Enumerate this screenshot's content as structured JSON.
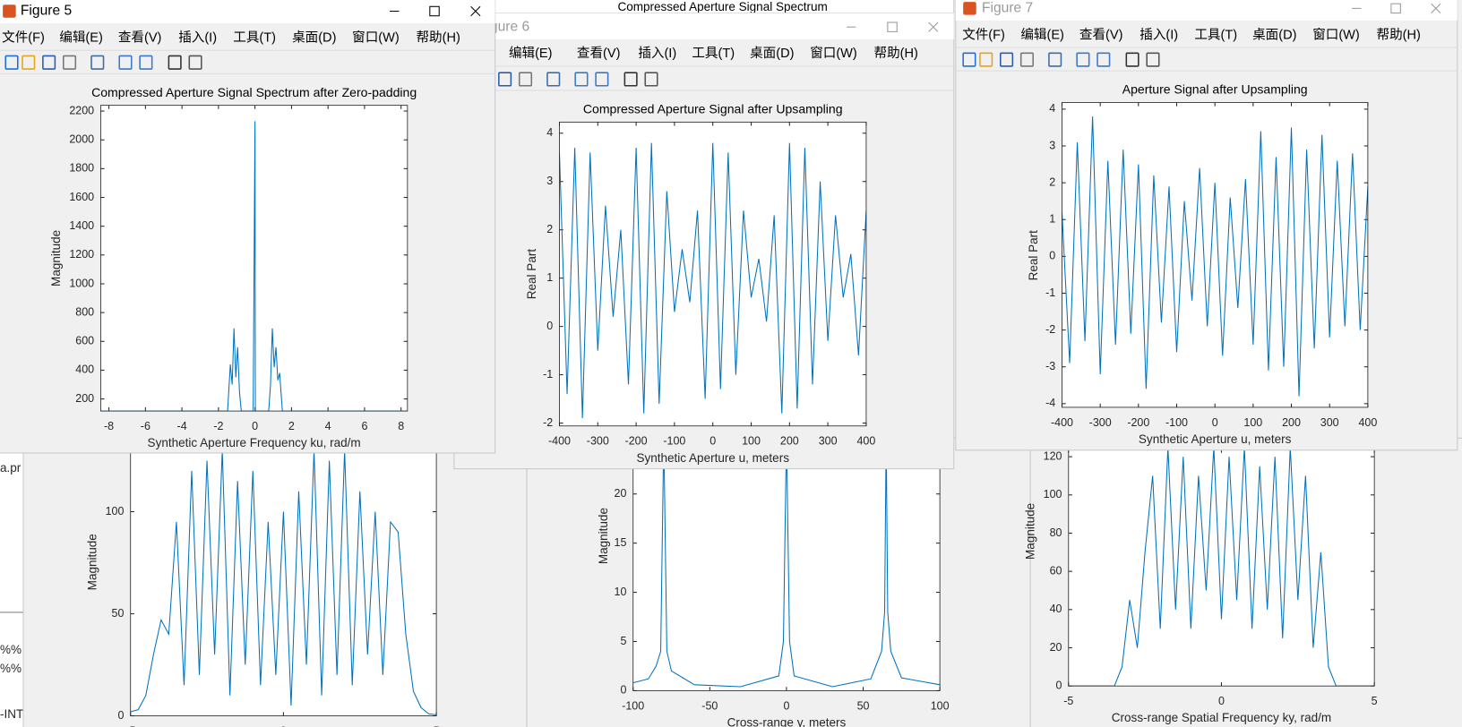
{
  "background_title": "Compressed Aperture Signal Spectrum",
  "editor_fragments": [
    "a.pr",
    "%%",
    "%%",
    "-INT"
  ],
  "windows": [
    {
      "chart": {
        "type": "line",
        "ylabel": "Magnitude",
        "color": "#0072bd",
        "x": [
          -5,
          -4.75,
          -4.5,
          -4.25,
          -4,
          -3.75,
          -3.5,
          -3.25,
          -3,
          -2.75,
          -2.5,
          -2.25,
          -2,
          -1.75,
          -1.5,
          -1.25,
          -1,
          -0.75,
          -0.5,
          -0.25,
          0,
          0.25,
          0.5,
          0.75,
          1,
          1.25,
          1.5,
          1.75,
          2,
          2.25,
          2.5,
          2.75,
          3,
          3.25,
          3.5,
          3.75,
          4,
          4.25,
          4.5,
          4.75,
          5
        ],
        "values": [
          2,
          3,
          10,
          30,
          47,
          40,
          95,
          15,
          120,
          20,
          125,
          30,
          130,
          10,
          115,
          25,
          120,
          15,
          95,
          20,
          100,
          5,
          110,
          25,
          130,
          10,
          125,
          20,
          130,
          15,
          110,
          30,
          100,
          20,
          95,
          90,
          40,
          12,
          4,
          1,
          0.5
        ],
        "xlim": [
          -5,
          5
        ],
        "ylim": [
          0,
          140
        ],
        "xticks": [
          -5,
          0,
          5
        ],
        "yticks": [
          0,
          50,
          100
        ]
      }
    },
    {
      "chart": {
        "type": "line",
        "xlabel": "Cross-range y, meters",
        "ylabel": "Magnitude",
        "color": "#0072bd",
        "x": [
          -100,
          -90,
          -85,
          -82,
          -80,
          -78,
          -75,
          -60,
          -30,
          -5,
          -2,
          0,
          2,
          5,
          30,
          55,
          62,
          64,
          65,
          66,
          68,
          75,
          100
        ],
        "values": [
          0.8,
          1.2,
          2.5,
          4,
          26,
          4,
          2,
          0.6,
          0.4,
          1.5,
          5,
          26,
          5,
          1.5,
          0.4,
          1.2,
          4,
          8,
          26,
          8,
          4,
          1.3,
          0.6
        ],
        "xlim": [
          -100,
          100
        ],
        "ylim": [
          0,
          24.5
        ],
        "xticks": [
          -100,
          -50,
          0,
          50,
          100
        ],
        "yticks": [
          0,
          5,
          10,
          15,
          20
        ]
      }
    },
    {
      "chart": {
        "type": "line",
        "xlabel": "Cross-range Spatial Frequency ky, rad/m",
        "ylabel": "Magnitude",
        "color": "#0072bd",
        "x": [
          -5,
          -4.75,
          -4.5,
          -4.25,
          -4,
          -3.75,
          -3.5,
          -3.25,
          -3,
          -2.75,
          -2.5,
          -2.25,
          -2,
          -1.75,
          -1.5,
          -1.25,
          -1,
          -0.75,
          -0.5,
          -0.25,
          0,
          0.25,
          0.5,
          0.75,
          1,
          1.25,
          1.5,
          1.75,
          2,
          2.25,
          2.5,
          2.75,
          3,
          3.25,
          3.5,
          3.75,
          4,
          4.25,
          4.5,
          4.75,
          5
        ],
        "values": [
          0,
          0,
          0,
          0,
          0,
          0,
          0,
          10,
          45,
          20,
          70,
          110,
          30,
          125,
          40,
          120,
          30,
          110,
          50,
          125,
          35,
          120,
          45,
          125,
          30,
          115,
          40,
          120,
          25,
          125,
          45,
          110,
          20,
          70,
          10,
          0,
          0,
          0,
          0,
          0,
          0
        ],
        "xlim": [
          -5,
          5
        ],
        "ylim": [
          0,
          124
        ],
        "xticks": [
          -5,
          0,
          5
        ],
        "yticks": [
          0,
          20,
          40,
          60,
          80,
          100,
          120
        ]
      }
    },
    {
      "title": "Figure 6",
      "menu": [
        "文件(F)",
        "编辑(E)",
        "查看(V)",
        "插入(I)",
        "工具(T)",
        "桌面(D)",
        "窗口(W)",
        "帮助(H)"
      ],
      "chart": {
        "type": "line",
        "title": "Compressed Aperture Signal after Upsampling",
        "xlabel": "Synthetic Aperture u, meters",
        "ylabel": "Real Part",
        "color": "#0072bd",
        "x": [
          -400,
          -380,
          -360,
          -340,
          -320,
          -300,
          -280,
          -260,
          -240,
          -220,
          -200,
          -180,
          -160,
          -140,
          -120,
          -100,
          -80,
          -60,
          -40,
          -20,
          0,
          20,
          40,
          60,
          80,
          100,
          120,
          140,
          160,
          180,
          200,
          220,
          240,
          260,
          280,
          300,
          320,
          340,
          360,
          380,
          400
        ],
        "values": [
          3.6,
          -1.4,
          3.7,
          -1.9,
          3.6,
          -0.5,
          2.5,
          0.2,
          2.0,
          -1.2,
          3.7,
          -1.8,
          3.8,
          -1.6,
          2.8,
          0.3,
          1.6,
          0.5,
          2.4,
          -1.5,
          3.8,
          -1.3,
          3.6,
          -1.0,
          2.4,
          0.6,
          1.4,
          0.1,
          2.3,
          -1.8,
          3.8,
          -1.7,
          3.7,
          -1.2,
          3.0,
          -0.3,
          2.3,
          0.6,
          1.5,
          -0.6,
          2.4
        ],
        "xlim": [
          -400,
          400
        ],
        "ylim": [
          -2.06,
          4.23
        ],
        "xticks": [
          -400,
          -300,
          -200,
          -100,
          0,
          100,
          200,
          300,
          400
        ],
        "yticks": [
          -2,
          -1,
          0,
          1,
          2,
          3,
          4
        ]
      }
    },
    {
      "title": "Figure 7",
      "menu": [
        "文件(F)",
        "编辑(E)",
        "查看(V)",
        "插入(I)",
        "工具(T)",
        "桌面(D)",
        "窗口(W)",
        "帮助(H)"
      ],
      "chart": {
        "type": "line",
        "title": "Aperture Signal after Upsampling",
        "xlabel": "Synthetic Aperture u, meters",
        "ylabel": "Real Part",
        "color": "#0072bd",
        "x": [
          -400,
          -380,
          -360,
          -340,
          -320,
          -300,
          -280,
          -260,
          -240,
          -220,
          -200,
          -180,
          -160,
          -140,
          -120,
          -100,
          -80,
          -60,
          -40,
          -20,
          0,
          20,
          40,
          60,
          80,
          100,
          120,
          140,
          160,
          180,
          200,
          220,
          240,
          260,
          280,
          300,
          320,
          340,
          360,
          380,
          400
        ],
        "values": [
          1.2,
          -2.9,
          3.1,
          -2.3,
          3.8,
          -3.2,
          2.6,
          -2.4,
          2.9,
          -2.1,
          2.5,
          -3.6,
          2.2,
          -1.8,
          1.9,
          -2.6,
          1.5,
          -1.2,
          2.4,
          -1.9,
          2.0,
          -2.7,
          1.6,
          -1.4,
          2.1,
          -2.4,
          3.4,
          -3.1,
          2.7,
          -3.0,
          3.5,
          -3.8,
          2.9,
          -2.5,
          3.3,
          -2.2,
          2.6,
          -1.9,
          2.8,
          -2.0,
          1.9
        ],
        "xlim": [
          -400,
          400
        ],
        "ylim": [
          -4.1,
          4.18
        ],
        "xticks": [
          -400,
          -300,
          -200,
          -100,
          0,
          100,
          200,
          300,
          400
        ],
        "yticks": [
          -4,
          -3,
          -2,
          -1,
          0,
          1,
          2,
          3,
          4
        ]
      }
    },
    {
      "title": "Figure 5",
      "menu": [
        "文件(F)",
        "编辑(E)",
        "查看(V)",
        "插入(I)",
        "工具(T)",
        "桌面(D)",
        "窗口(W)",
        "帮助(H)"
      ],
      "chart": {
        "type": "line",
        "title": "Compressed Aperture Signal Spectrum after Zero-padding",
        "xlabel": "Synthetic Aperture Frequency ku, rad/m",
        "ylabel": "Magnitude",
        "color": "#0072bd",
        "x": [
          -8.45,
          -1.5,
          -1.35,
          -1.25,
          -1.15,
          -1.05,
          -0.95,
          -0.85,
          -0.75,
          -0.1,
          0,
          0.02,
          0.1,
          0.75,
          0.85,
          0.95,
          1.05,
          1.15,
          1.25,
          1.35,
          1.5,
          8.35
        ],
        "values": [
          116,
          116,
          440,
          300,
          690,
          350,
          560,
          250,
          116,
          116,
          2130,
          116,
          116,
          116,
          300,
          690,
          420,
          560,
          330,
          380,
          116,
          116
        ],
        "xlim": [
          -8.45,
          8.35
        ],
        "ylim": [
          116,
          2240
        ],
        "xticks": [
          -8,
          -6,
          -4,
          -2,
          0,
          2,
          4,
          6,
          8
        ],
        "yticks": [
          200,
          400,
          600,
          800,
          1000,
          1200,
          1400,
          1600,
          1800,
          2000,
          2200
        ]
      }
    }
  ]
}
